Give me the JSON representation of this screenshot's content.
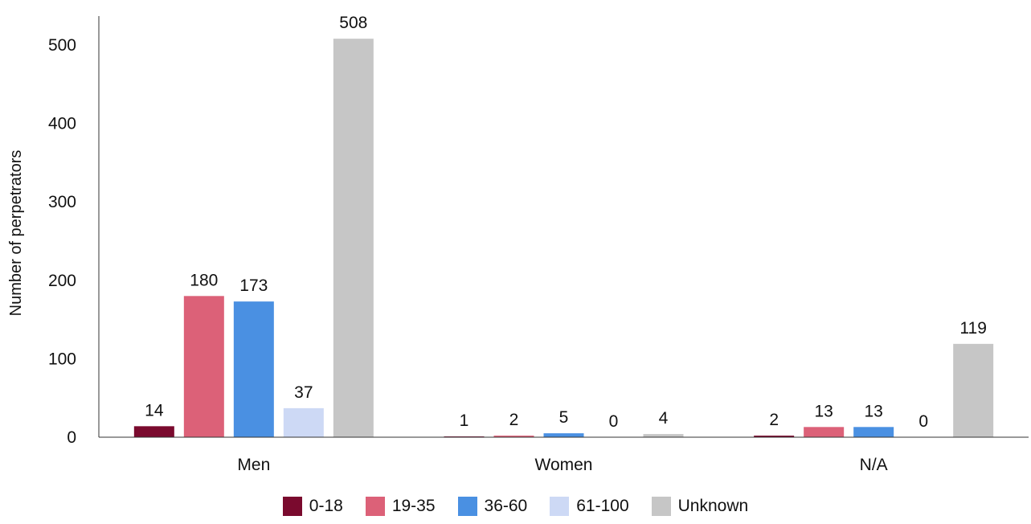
{
  "chart_data": {
    "type": "bar",
    "title": "",
    "xlabel": "",
    "ylabel": "Number of perpetrators",
    "categories": [
      "Men",
      "Women",
      "N/A"
    ],
    "series": [
      {
        "name": "0-18",
        "color": "#7a0a2e",
        "values": [
          14,
          1,
          2
        ]
      },
      {
        "name": "19-35",
        "color": "#dc6178",
        "values": [
          180,
          2,
          13
        ]
      },
      {
        "name": "36-60",
        "color": "#4a90e2",
        "values": [
          173,
          5,
          13
        ]
      },
      {
        "name": "61-100",
        "color": "#cdd9f5",
        "values": [
          37,
          0,
          0
        ]
      },
      {
        "name": "Unknown",
        "color": "#c6c6c6",
        "values": [
          508,
          4,
          119
        ]
      }
    ],
    "ylim": [
      0,
      500
    ],
    "yticks": [
      0,
      100,
      200,
      300,
      400,
      500
    ],
    "grid": false,
    "legend_position": "bottom"
  }
}
